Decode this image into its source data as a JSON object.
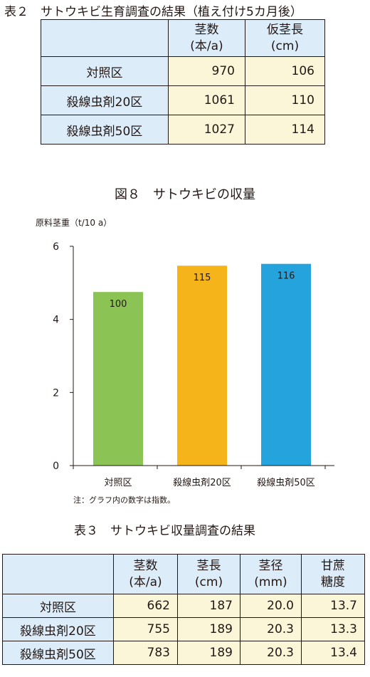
{
  "table2": {
    "title": "表２　サトウキビ生育調査の結果（植え付け5カ月後）",
    "headers": [
      {
        "line1": "茎数",
        "line2": "(本/a)"
      },
      {
        "line1": "仮茎長",
        "line2": "(cm)"
      }
    ],
    "rows": [
      {
        "label": "対照区",
        "stems": "970",
        "height": "106"
      },
      {
        "label": "殺線虫剤20区",
        "stems": "1061",
        "height": "110"
      },
      {
        "label": "殺線虫剤50区",
        "stems": "1027",
        "height": "114"
      }
    ]
  },
  "figure": {
    "title": "図８　サトウキビの収量",
    "note": "注：グラフ内の数字は指数。"
  },
  "chart_data": {
    "type": "bar",
    "title": "図８　サトウキビの収量",
    "xlabel": "",
    "ylabel": "原料茎重（t/10 a）",
    "categories": [
      "対照区",
      "殺線虫剤20区",
      "殺線虫剤50区"
    ],
    "values": [
      4.75,
      5.47,
      5.52
    ],
    "data_labels": [
      "100",
      "115",
      "116"
    ],
    "colors": [
      "#8cc355",
      "#f4b41a",
      "#25a3dd"
    ],
    "ylim": [
      0,
      6
    ],
    "yticks": [
      0,
      2,
      4,
      6
    ],
    "grid": false,
    "legend": "none"
  },
  "table3": {
    "title": "表３　サトウキビ収量調査の結果",
    "headers": [
      {
        "line1": "茎数",
        "line2": "(本/a)"
      },
      {
        "line1": "茎長",
        "line2": "(cm)"
      },
      {
        "line1": "茎径",
        "line2": "(mm)"
      },
      {
        "line1": "甘蔗",
        "line2": "糖度"
      }
    ],
    "rows": [
      {
        "label": "対照区",
        "stems": "662",
        "length": "187",
        "diameter": "20.0",
        "brix": "13.7"
      },
      {
        "label": "殺線虫剤20区",
        "stems": "755",
        "length": "189",
        "diameter": "20.3",
        "brix": "13.3"
      },
      {
        "label": "殺線虫剤50区",
        "stems": "783",
        "length": "189",
        "diameter": "20.3",
        "brix": "13.4"
      }
    ]
  }
}
